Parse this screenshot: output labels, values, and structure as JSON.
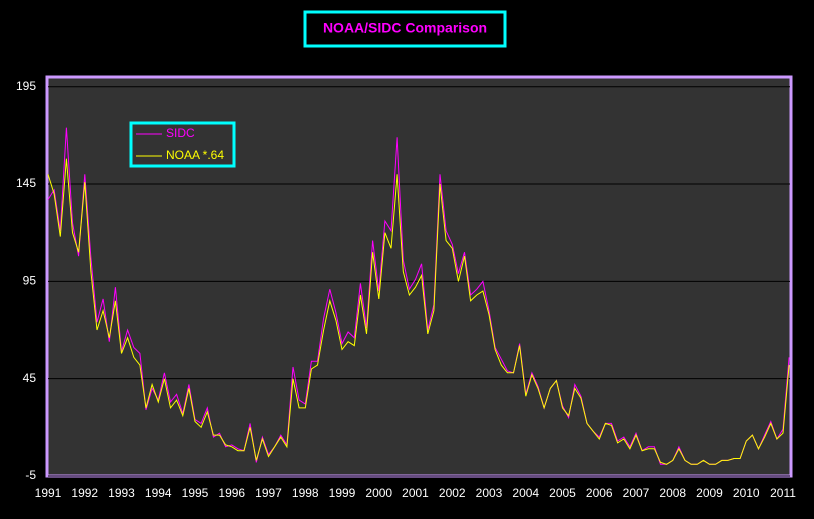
{
  "chart_data": {
    "type": "line",
    "title": "NOAA/SIDC Comparison",
    "categories": [
      "1991",
      null,
      null,
      null,
      null,
      null,
      "1992",
      null,
      null,
      null,
      null,
      null,
      "1993",
      null,
      null,
      null,
      null,
      null,
      "1994",
      null,
      null,
      null,
      null,
      null,
      "1995",
      null,
      null,
      null,
      null,
      null,
      "1996",
      null,
      null,
      null,
      null,
      null,
      "1997",
      null,
      null,
      null,
      null,
      null,
      "1998",
      null,
      null,
      null,
      null,
      null,
      "1999",
      null,
      null,
      null,
      null,
      null,
      "2000",
      null,
      null,
      null,
      null,
      null,
      "2001",
      null,
      null,
      null,
      null,
      null,
      "2002",
      null,
      null,
      null,
      null,
      null,
      "2003",
      null,
      null,
      null,
      null,
      null,
      "2004",
      null,
      null,
      null,
      null,
      null,
      "2005",
      null,
      null,
      null,
      null,
      null,
      "2006",
      null,
      null,
      null,
      null,
      null,
      "2007",
      null,
      null,
      null,
      null,
      null,
      "2008",
      null,
      null,
      null,
      null,
      null,
      "2009",
      null,
      null,
      null,
      null,
      null,
      "2010",
      null,
      null,
      null,
      null,
      null,
      "2011",
      null
    ],
    "series": [
      {
        "name": "SIDC",
        "color": "#ff00ff",
        "values": [
          137,
          142,
          121,
          174,
          125,
          108,
          150,
          107,
          74,
          86,
          64,
          92,
          59,
          70,
          61,
          58,
          29,
          40,
          34,
          48,
          33,
          37,
          27,
          42,
          24,
          22,
          30,
          15,
          17,
          10,
          11,
          9,
          8,
          22,
          2,
          15,
          6,
          10,
          16,
          11,
          51,
          34,
          32,
          54,
          54,
          76,
          91,
          79,
          63,
          69,
          66,
          94,
          71,
          116,
          90,
          126,
          121,
          169,
          106,
          91,
          96,
          104,
          70,
          83,
          150,
          121,
          114,
          99,
          110,
          88,
          91,
          95,
          80,
          61,
          55,
          49,
          48,
          63,
          37,
          48,
          41,
          30,
          40,
          44,
          31,
          25,
          42,
          36,
          22,
          18,
          15,
          22,
          22,
          13,
          15,
          10,
          17,
          8,
          10,
          10,
          1,
          1,
          3,
          10,
          3,
          1,
          1,
          3,
          1,
          1,
          3,
          3,
          4,
          4,
          13,
          16,
          9,
          16,
          23,
          14,
          19,
          56
        ]
      },
      {
        "name": "NOAA *.64",
        "color": "#ffff00",
        "values": [
          150,
          140,
          118,
          158,
          120,
          110,
          146,
          100,
          70,
          80,
          66,
          85,
          58,
          66,
          56,
          52,
          30,
          42,
          33,
          45,
          30,
          34,
          26,
          40,
          23,
          20,
          28,
          16,
          16,
          11,
          10,
          8,
          8,
          20,
          3,
          14,
          5,
          10,
          15,
          10,
          45,
          30,
          30,
          50,
          52,
          70,
          85,
          75,
          60,
          64,
          62,
          88,
          68,
          110,
          86,
          120,
          112,
          150,
          100,
          88,
          92,
          98,
          68,
          80,
          145,
          116,
          112,
          95,
          108,
          85,
          88,
          90,
          78,
          60,
          52,
          48,
          48,
          62,
          36,
          47,
          40,
          30,
          40,
          44,
          30,
          26,
          40,
          35,
          22,
          18,
          14,
          22,
          21,
          12,
          14,
          9,
          16,
          8,
          9,
          9,
          2,
          1,
          3,
          9,
          3,
          1,
          1,
          3,
          1,
          1,
          3,
          3,
          4,
          4,
          13,
          16,
          9,
          15,
          22,
          14,
          17,
          52
        ]
      }
    ],
    "ylim": [
      -5,
      200
    ],
    "yticks": [
      -5,
      45,
      95,
      145,
      195
    ],
    "grid": true
  }
}
